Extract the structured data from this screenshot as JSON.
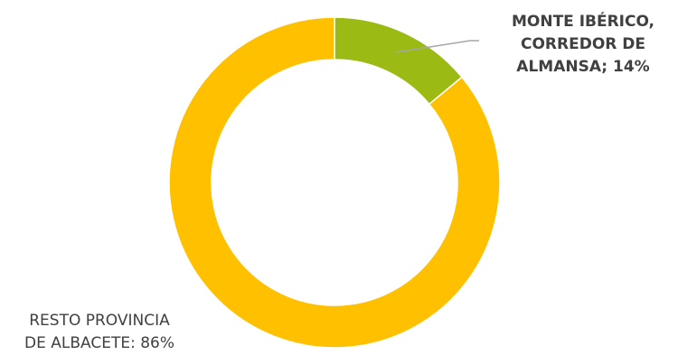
{
  "chart_data": {
    "type": "pie",
    "donut": true,
    "title": "",
    "legend": "none",
    "slices": [
      {
        "name": "MONTE IBÉRICO, CORREDOR DE ALMANSA",
        "value": 14,
        "label_lines": [
          "MONTE IBÉRICO,",
          "CORREDOR DE",
          "ALMANSA; 14%"
        ],
        "color": "#9BBB14"
      },
      {
        "name": "RESTO PROVINCIA DE ALBACETE",
        "value": 86,
        "label_lines": [
          "RESTO PROVINCIA",
          "DE ALBACETE: 86%"
        ],
        "color": "#FFC000"
      }
    ]
  }
}
